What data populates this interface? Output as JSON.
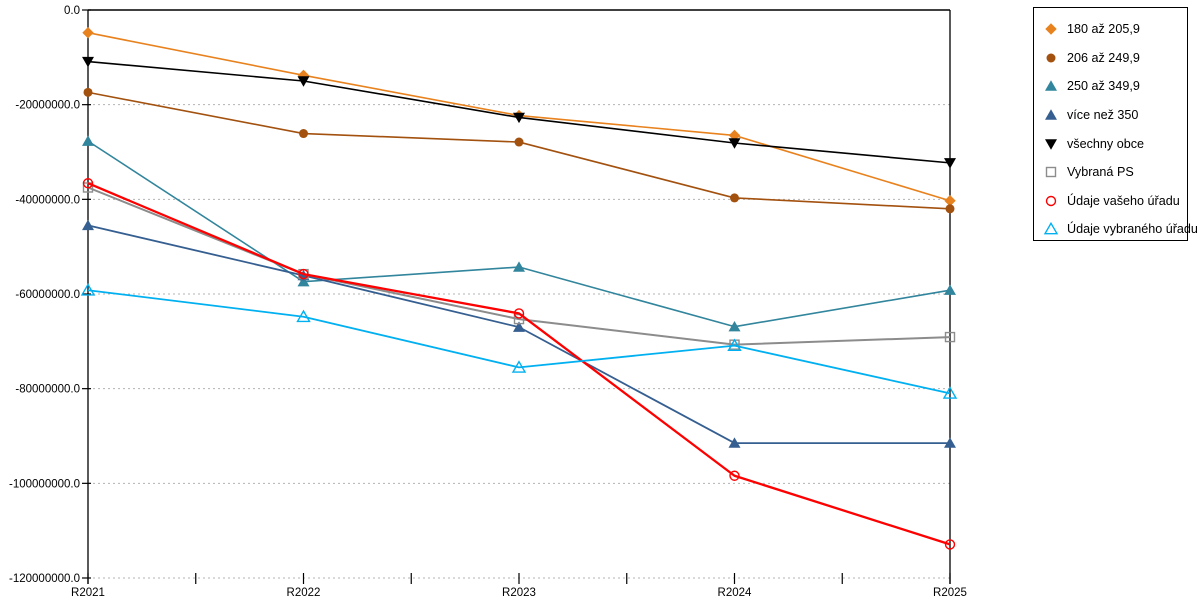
{
  "chart_data": {
    "type": "line",
    "title": "",
    "xlabel": "",
    "ylabel": "",
    "categories": [
      "R2021",
      "R2022",
      "R2023",
      "R2024",
      "R2025"
    ],
    "ylim": [
      -120000000,
      0
    ],
    "ytick_step": 20000000,
    "ytick_labels": [
      "0.0",
      "-20000000.0",
      "-40000000.0",
      "-60000000.0",
      "-80000000.0",
      "-100000000.0",
      "-120000000.0"
    ],
    "grid": {
      "horizontal": "dotted",
      "vertical": "none",
      "color": "#b3b3b3"
    },
    "axis_color": "#000000",
    "background": "#ffffff",
    "legend_position": "outside-right-top",
    "x_minor_ticks_between_categories": true,
    "series": [
      {
        "name": "180 až 205,9",
        "color": "#E8821E",
        "marker": "diamond",
        "marker_filled": true,
        "line_width": 1.6,
        "values": [
          -4800000,
          -13800000,
          -22300000,
          -26500000,
          -40300000
        ]
      },
      {
        "name": "206 až 249,9",
        "color": "#A3510F",
        "marker": "circle",
        "marker_filled": true,
        "line_width": 1.6,
        "values": [
          -17400000,
          -26100000,
          -27900000,
          -39700000,
          -42000000
        ]
      },
      {
        "name": "250 až 349,9",
        "color": "#31859C",
        "marker": "triangle-up",
        "marker_filled": true,
        "line_width": 1.6,
        "values": [
          -27700000,
          -57400000,
          -54300000,
          -66900000,
          -59200000
        ]
      },
      {
        "name": "více než 350",
        "color": "#365F91",
        "marker": "triangle-up",
        "marker_filled": true,
        "line_width": 1.8,
        "values": [
          -45500000,
          -56100000,
          -67000000,
          -91500000,
          -91500000
        ]
      },
      {
        "name": "všechny obce",
        "color": "#000000",
        "marker": "triangle-down",
        "marker_filled": true,
        "line_width": 1.6,
        "values": [
          -10900000,
          -15000000,
          -22700000,
          -28100000,
          -32300000
        ]
      },
      {
        "name": "Vybraná PS",
        "color": "#8C8C8C",
        "marker": "square",
        "marker_filled": false,
        "line_width": 2.0,
        "values": [
          -37500000,
          -55800000,
          -65300000,
          -70700000,
          -69100000
        ]
      },
      {
        "name": "Údaje vašeho úřadu",
        "color": "#FF0000",
        "marker": "circle",
        "marker_filled": false,
        "line_width": 2.3,
        "values": [
          -36600000,
          -55800000,
          -64100000,
          -98400000,
          -112900000
        ]
      },
      {
        "name": "Údaje vybraného úřadu",
        "color": "#00B0F0",
        "marker": "triangle-up",
        "marker_filled": false,
        "line_width": 1.8,
        "values": [
          -59200000,
          -64800000,
          -75500000,
          -70900000,
          -81000000
        ]
      }
    ]
  }
}
